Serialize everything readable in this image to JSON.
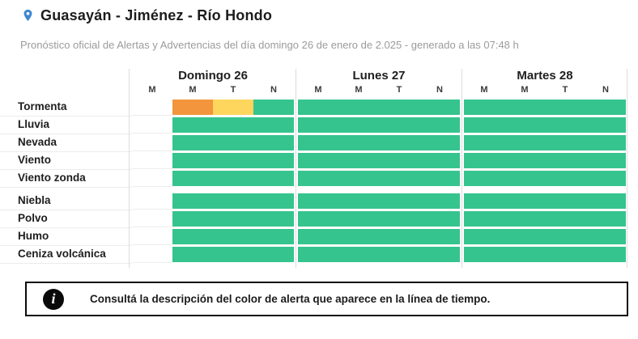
{
  "header": {
    "title": "Guasayán - Jiménez - Río Hondo",
    "subtitle": "Pronóstico oficial de Alertas y Advertencias del día domingo 26 de enero de 2.025 - generado a las 07:48 h"
  },
  "colors": {
    "green": "#35c48e",
    "orange": "#f2953c",
    "yellow": "#fed55d",
    "pin_blue": "#3e86d1"
  },
  "timeline": {
    "days": [
      {
        "label": "Domingo 26",
        "periods": [
          "M",
          "M",
          "T",
          "N"
        ]
      },
      {
        "label": "Lunes 27",
        "periods": [
          "M",
          "M",
          "T",
          "N"
        ]
      },
      {
        "label": "Martes 28",
        "periods": [
          "M",
          "M",
          "T",
          "N"
        ]
      }
    ],
    "groups": [
      {
        "rows": [
          {
            "label": "Tormenta",
            "cells": [
              [
                null,
                "orange",
                "yellow",
                "green"
              ],
              [
                "green",
                "green",
                "green",
                "green"
              ],
              [
                "green",
                "green",
                "green",
                "green"
              ]
            ]
          },
          {
            "label": "Lluvia",
            "cells": [
              [
                null,
                "green",
                "green",
                "green"
              ],
              [
                "green",
                "green",
                "green",
                "green"
              ],
              [
                "green",
                "green",
                "green",
                "green"
              ]
            ]
          },
          {
            "label": "Nevada",
            "cells": [
              [
                null,
                "green",
                "green",
                "green"
              ],
              [
                "green",
                "green",
                "green",
                "green"
              ],
              [
                "green",
                "green",
                "green",
                "green"
              ]
            ]
          },
          {
            "label": "Viento",
            "cells": [
              [
                null,
                "green",
                "green",
                "green"
              ],
              [
                "green",
                "green",
                "green",
                "green"
              ],
              [
                "green",
                "green",
                "green",
                "green"
              ]
            ]
          },
          {
            "label": "Viento zonda",
            "cells": [
              [
                null,
                "green",
                "green",
                "green"
              ],
              [
                "green",
                "green",
                "green",
                "green"
              ],
              [
                "green",
                "green",
                "green",
                "green"
              ]
            ]
          }
        ]
      },
      {
        "rows": [
          {
            "label": "Niebla",
            "cells": [
              [
                null,
                "green",
                "green",
                "green"
              ],
              [
                "green",
                "green",
                "green",
                "green"
              ],
              [
                "green",
                "green",
                "green",
                "green"
              ]
            ]
          },
          {
            "label": "Polvo",
            "cells": [
              [
                null,
                "green",
                "green",
                "green"
              ],
              [
                "green",
                "green",
                "green",
                "green"
              ],
              [
                "green",
                "green",
                "green",
                "green"
              ]
            ]
          },
          {
            "label": "Humo",
            "cells": [
              [
                null,
                "green",
                "green",
                "green"
              ],
              [
                "green",
                "green",
                "green",
                "green"
              ],
              [
                "green",
                "green",
                "green",
                "green"
              ]
            ]
          },
          {
            "label": "Ceniza volcánica",
            "cells": [
              [
                null,
                "green",
                "green",
                "green"
              ],
              [
                "green",
                "green",
                "green",
                "green"
              ],
              [
                "green",
                "green",
                "green",
                "green"
              ]
            ]
          }
        ]
      }
    ]
  },
  "footer": {
    "info_icon": "i",
    "text": "Consultá la descripción del color de alerta que aparece en la línea de tiempo."
  }
}
